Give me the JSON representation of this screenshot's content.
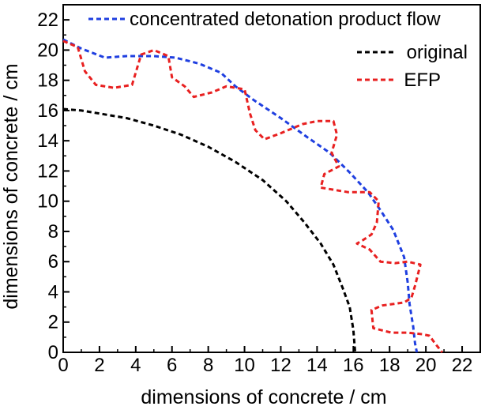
{
  "chart_data": {
    "type": "line",
    "xlabel": "dimensions of concrete / cm",
    "ylabel": "dimensions of concrete / cm",
    "xlim": [
      0,
      23
    ],
    "ylim": [
      0,
      23
    ],
    "x_ticks": [
      "0",
      "2",
      "4",
      "6",
      "8",
      "10",
      "12",
      "14",
      "16",
      "18",
      "20",
      "22"
    ],
    "y_ticks": [
      "0",
      "2",
      "4",
      "6",
      "8",
      "10",
      "12",
      "14",
      "16",
      "18",
      "20",
      "22"
    ],
    "grid": false,
    "legend_position": "top-right",
    "series": [
      {
        "name": "concentrated detonation product flow",
        "color": "#1f3fe0",
        "style": "dashed",
        "points": [
          [
            0,
            20.7
          ],
          [
            1,
            20.1
          ],
          [
            2.3,
            19.5
          ],
          [
            3.5,
            19.6
          ],
          [
            5,
            19.6
          ],
          [
            6.2,
            19.5
          ],
          [
            7.5,
            19.1
          ],
          [
            8.7,
            18.5
          ],
          [
            9.5,
            17.6
          ],
          [
            10.5,
            16.7
          ],
          [
            12,
            15.5
          ],
          [
            13.5,
            14.2
          ],
          [
            14.7,
            13.2
          ],
          [
            15.8,
            11.9
          ],
          [
            16.8,
            10.6
          ],
          [
            17.5,
            9.4
          ],
          [
            18.2,
            8.1
          ],
          [
            18.8,
            6.3
          ],
          [
            19,
            4.6
          ],
          [
            19.1,
            3.2
          ],
          [
            19.3,
            1.7
          ],
          [
            19.4,
            0.6
          ],
          [
            19.5,
            0
          ]
        ]
      },
      {
        "name": "original",
        "color": "#000000",
        "style": "dashed",
        "points": [
          [
            0,
            16.1
          ],
          [
            1,
            16
          ],
          [
            2,
            15.8
          ],
          [
            3.5,
            15.5
          ],
          [
            5,
            15
          ],
          [
            6.5,
            14.4
          ],
          [
            8,
            13.6
          ],
          [
            9.5,
            12.6
          ],
          [
            11,
            11.4
          ],
          [
            12.3,
            10
          ],
          [
            13.3,
            8.6
          ],
          [
            14.2,
            7.2
          ],
          [
            14.9,
            5.8
          ],
          [
            15.4,
            4.3
          ],
          [
            15.8,
            3
          ],
          [
            16,
            1.5
          ],
          [
            16.1,
            0
          ]
        ]
      },
      {
        "name": "EFP",
        "color": "#e82020",
        "style": "dashed",
        "points": [
          [
            0,
            20.6
          ],
          [
            0.8,
            20.2
          ],
          [
            1.2,
            18.6
          ],
          [
            1.8,
            17.7
          ],
          [
            2.8,
            17.5
          ],
          [
            3.8,
            17.7
          ],
          [
            4.3,
            19.7
          ],
          [
            5,
            20
          ],
          [
            5.8,
            19.6
          ],
          [
            6,
            18.2
          ],
          [
            6.7,
            17.6
          ],
          [
            7.2,
            16.9
          ],
          [
            8.2,
            17.2
          ],
          [
            9,
            17.6
          ],
          [
            10,
            17.4
          ],
          [
            10.3,
            15.8
          ],
          [
            10.6,
            14.7
          ],
          [
            11.1,
            14.1
          ],
          [
            12,
            14.5
          ],
          [
            13.2,
            15.1
          ],
          [
            14,
            15.3
          ],
          [
            14.9,
            15.3
          ],
          [
            15.1,
            14.4
          ],
          [
            14.8,
            13.2
          ],
          [
            15.2,
            12.3
          ],
          [
            14.4,
            11.8
          ],
          [
            14.2,
            10.9
          ],
          [
            15.7,
            10.6
          ],
          [
            16.9,
            10.6
          ],
          [
            17.4,
            10
          ],
          [
            17.3,
            8.6
          ],
          [
            17,
            7.8
          ],
          [
            16.5,
            7.4
          ],
          [
            16.2,
            7.2
          ],
          [
            16.9,
            6.8
          ],
          [
            17.5,
            6
          ],
          [
            18.3,
            5.9
          ],
          [
            19,
            6
          ],
          [
            19.7,
            5.8
          ],
          [
            19.4,
            4.4
          ],
          [
            19.2,
            3.6
          ],
          [
            18.8,
            3.3
          ],
          [
            17.6,
            3.1
          ],
          [
            17,
            2.8
          ],
          [
            17.1,
            1.6
          ],
          [
            18.1,
            1.3
          ],
          [
            19,
            1.3
          ],
          [
            19.8,
            1.2
          ],
          [
            20.2,
            1.1
          ],
          [
            20.5,
            0.6
          ],
          [
            20.9,
            0
          ]
        ]
      }
    ]
  }
}
